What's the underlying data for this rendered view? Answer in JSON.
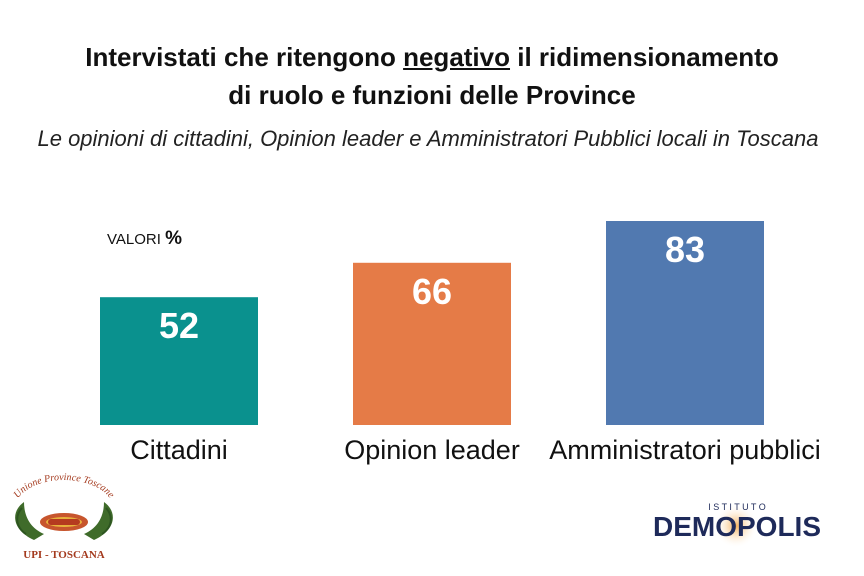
{
  "header": {
    "title_part1": "Intervistati che ritengono ",
    "title_emph": "negativo",
    "title_part2": " il ridimensionamento",
    "title_line2": "di ruolo e funzioni delle Province",
    "subtitle": "Le opinioni di cittadini, Opinion leader e Amministratori Pubblici locali in Toscana",
    "units_label": "VALORI",
    "units_symbol": "%"
  },
  "chart_data": {
    "type": "bar",
    "categories": [
      "Cittadini",
      "Opinion leader",
      "Amministratori pubblici"
    ],
    "values": [
      52,
      66,
      83
    ],
    "colors": [
      "#0a918e",
      "#e57b47",
      "#5179b0"
    ],
    "ylim": [
      0,
      100
    ],
    "grid": false
  },
  "logos": {
    "left_ring": "Unione Province Toscane",
    "left_bottom": "UPI - TOSCANA",
    "right_top": "I S T I T U T O",
    "right_main": "DEMOPOLIS"
  }
}
